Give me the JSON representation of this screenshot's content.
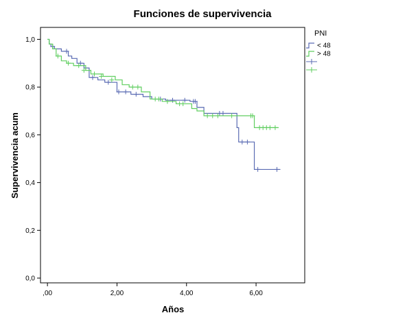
{
  "chart_data": {
    "type": "line",
    "title": "Funciones de supervivencia",
    "xlabel": "Años",
    "ylabel": "Supervivencia acum",
    "xlim": [
      -0.2,
      7.4
    ],
    "ylim": [
      -0.02,
      1.05
    ],
    "xticks": [
      0,
      2,
      4,
      6
    ],
    "xtick_labels": [
      ",00",
      "2,00",
      "4,00",
      "6,00"
    ],
    "yticks": [
      0,
      0.2,
      0.4,
      0.6,
      0.8,
      1.0
    ],
    "ytick_labels": [
      "0,0",
      "0,2",
      "0,4",
      "0,6",
      "0,8",
      "1,0"
    ],
    "grid": false,
    "legend_title": "PNI",
    "legend_position": "top-right",
    "legend_entries": [
      {
        "label": "< 48",
        "kind": "line",
        "color": "#5a6bb3"
      },
      {
        "label": "> 48",
        "kind": "line",
        "color": "#5fce5f"
      },
      {
        "label": "",
        "kind": "censor",
        "color": "#5a6bb3"
      },
      {
        "label": "",
        "kind": "censor",
        "color": "#5fce5f"
      }
    ],
    "series": [
      {
        "name": "< 48",
        "color": "#5a6bb3",
        "x": [
          0,
          0.05,
          0.1,
          0.2,
          0.4,
          0.6,
          0.7,
          0.85,
          1.05,
          1.2,
          1.45,
          1.65,
          2.0,
          2.4,
          2.55,
          2.75,
          3.0,
          3.4,
          3.55,
          4.1,
          4.3,
          4.5,
          4.8,
          5.4,
          5.45,
          5.5,
          5.9,
          5.95,
          6.7
        ],
        "y": [
          1.0,
          0.98,
          0.97,
          0.96,
          0.95,
          0.93,
          0.92,
          0.9,
          0.88,
          0.84,
          0.83,
          0.82,
          0.78,
          0.77,
          0.77,
          0.76,
          0.75,
          0.745,
          0.745,
          0.74,
          0.715,
          0.69,
          0.69,
          0.69,
          0.63,
          0.57,
          0.57,
          0.455,
          0.455
        ],
        "censor_x": [
          0.15,
          0.55,
          0.95,
          1.3,
          1.75,
          2.05,
          2.25,
          2.55,
          3.25,
          3.6,
          3.95,
          4.2,
          4.25,
          4.95,
          5.05,
          5.6,
          5.75,
          6.05,
          6.6
        ],
        "censor_y": [
          0.97,
          0.95,
          0.9,
          0.84,
          0.82,
          0.78,
          0.78,
          0.77,
          0.75,
          0.745,
          0.745,
          0.74,
          0.74,
          0.69,
          0.69,
          0.57,
          0.57,
          0.455,
          0.455
        ]
      },
      {
        "name": "> 48",
        "color": "#5fce5f",
        "x": [
          0,
          0.05,
          0.15,
          0.25,
          0.4,
          0.55,
          0.75,
          1.1,
          1.25,
          1.6,
          1.95,
          2.15,
          2.35,
          2.7,
          2.95,
          3.3,
          3.7,
          4.15,
          4.3,
          4.5,
          5.95,
          6.65
        ],
        "y": [
          1.0,
          0.98,
          0.96,
          0.93,
          0.91,
          0.9,
          0.89,
          0.87,
          0.855,
          0.845,
          0.83,
          0.81,
          0.8,
          0.78,
          0.75,
          0.74,
          0.73,
          0.71,
          0.7,
          0.68,
          0.63,
          0.63
        ],
        "censor_x": [
          0.3,
          0.6,
          0.9,
          1.05,
          1.35,
          1.55,
          1.85,
          2.45,
          2.6,
          3.1,
          3.2,
          3.45,
          3.8,
          3.9,
          4.6,
          4.75,
          4.9,
          5.3,
          5.85,
          5.9,
          6.1,
          6.2,
          6.3,
          6.4,
          6.55
        ],
        "censor_y": [
          0.93,
          0.9,
          0.89,
          0.87,
          0.855,
          0.845,
          0.83,
          0.8,
          0.8,
          0.75,
          0.75,
          0.74,
          0.73,
          0.73,
          0.68,
          0.68,
          0.68,
          0.68,
          0.68,
          0.68,
          0.63,
          0.63,
          0.63,
          0.63,
          0.63
        ]
      }
    ]
  }
}
